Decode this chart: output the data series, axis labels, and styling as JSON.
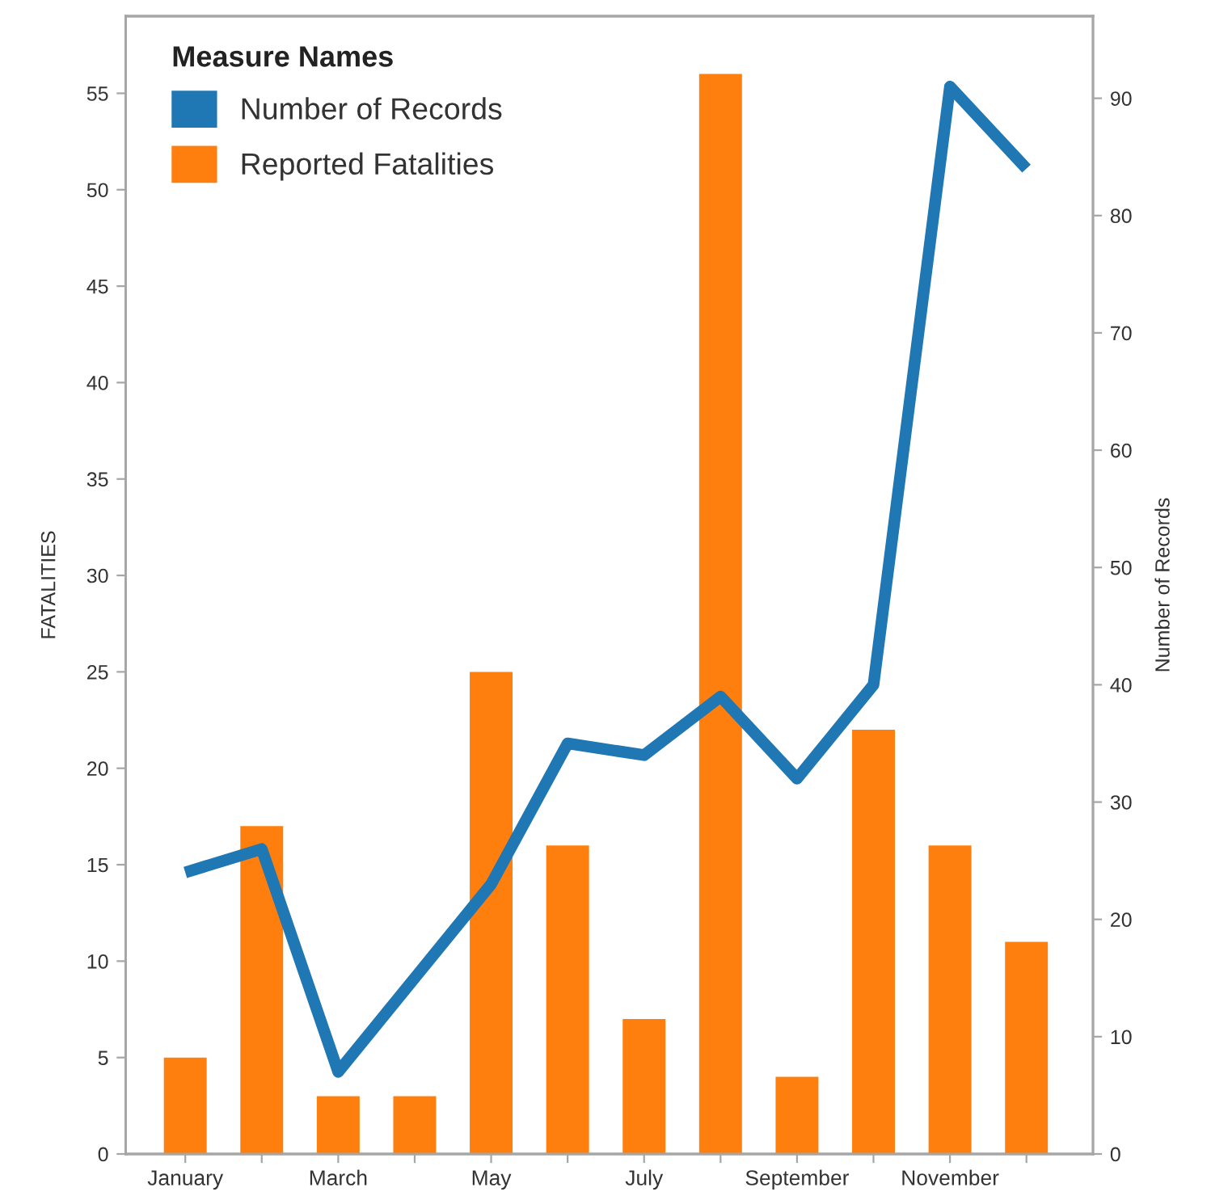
{
  "chart_data": {
    "type": "bar",
    "categories": [
      "January",
      null,
      "March",
      null,
      "May",
      null,
      "July",
      null,
      "September",
      null,
      "November",
      null
    ],
    "series": [
      {
        "name": "Number of Records",
        "type": "line",
        "axis": "y2",
        "color": "#1f77b4",
        "line_style": "solid",
        "values": [
          24,
          26,
          7,
          15,
          23,
          35,
          34,
          39,
          32,
          40,
          91,
          84
        ]
      },
      {
        "name": "Reported Fatalities",
        "axis": "y",
        "color": "#ff7f0e",
        "values": [
          5,
          17,
          3,
          3,
          25,
          16,
          7,
          56,
          4,
          22,
          16,
          11
        ]
      }
    ],
    "ylabel": "FATALITIES",
    "y2label": "Number of Records",
    "legend_title": "Measure Names",
    "legend": "top left",
    "ylim": [
      0,
      59
    ],
    "yticks": [
      0,
      5,
      10,
      15,
      20,
      25,
      30,
      35,
      40,
      45,
      50,
      55
    ],
    "y2lim": [
      0,
      97
    ],
    "y2ticks": [
      0,
      10,
      20,
      30,
      40,
      50,
      60,
      70,
      80,
      90
    ]
  }
}
